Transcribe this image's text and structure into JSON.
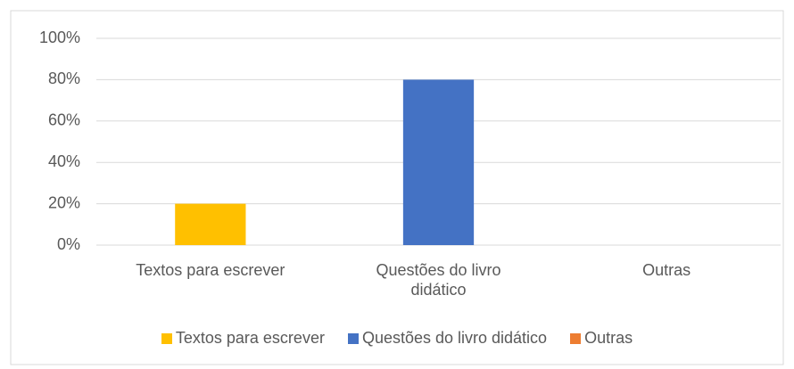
{
  "chart_data": {
    "type": "bar",
    "categories": [
      "Textos para escrever",
      "Questões do livro didático",
      "Outras"
    ],
    "values": [
      20,
      80,
      0
    ],
    "colors": [
      "#ffc000",
      "#4472c4",
      "#ed7d31"
    ],
    "ylim": [
      0,
      100
    ],
    "yticks": [
      {
        "value": 0,
        "label": "0%"
      },
      {
        "value": 20,
        "label": "20%"
      },
      {
        "value": 40,
        "label": "40%"
      },
      {
        "value": 60,
        "label": "60%"
      },
      {
        "value": 80,
        "label": "80%"
      },
      {
        "value": 100,
        "label": "100%"
      }
    ],
    "grid": true,
    "legend": "bottom"
  }
}
